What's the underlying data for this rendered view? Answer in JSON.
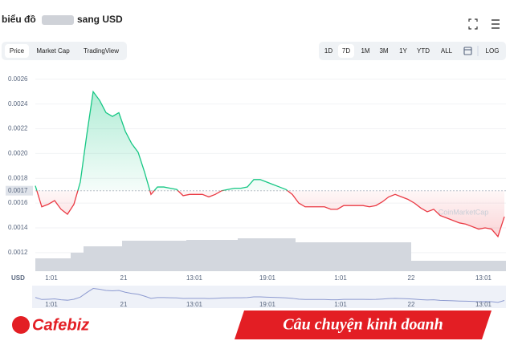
{
  "header": {
    "title_start": "biểu đồ",
    "title_end": "sang USD"
  },
  "tabs": [
    "Price",
    "Market Cap",
    "TradingView"
  ],
  "active_tab": "Price",
  "ranges": [
    "1D",
    "7D",
    "1M",
    "3M",
    "1Y",
    "YTD",
    "ALL"
  ],
  "active_range": "7D",
  "log_label": "LOG",
  "chart_data": {
    "type": "line",
    "ylim": [
      0.00105,
      0.00267
    ],
    "yticks": [
      0.0012,
      0.0014,
      0.0016,
      0.0018,
      {
        "value": 0.002,
        "label": "0.0020"
      },
      0.0022,
      0.0024,
      0.0026
    ],
    "baseline": 0.0017,
    "color_up": "#16c784",
    "color_down": "#ea3943",
    "values": [
      0.00174,
      0.00157,
      0.00159,
      0.00162,
      0.00155,
      0.00151,
      0.00159,
      0.00177,
      0.00215,
      0.0025,
      0.00243,
      0.00233,
      0.0023,
      0.00233,
      0.00218,
      0.00208,
      0.00201,
      0.00185,
      0.00167,
      0.00173,
      0.00173,
      0.00172,
      0.00171,
      0.00166,
      0.00167,
      0.00167,
      0.00167,
      0.00165,
      0.00167,
      0.0017,
      0.00171,
      0.00172,
      0.00172,
      0.00173,
      0.00179,
      0.00179,
      0.00177,
      0.00175,
      0.00173,
      0.00171,
      0.00167,
      0.0016,
      0.00157,
      0.00157,
      0.00157,
      0.00157,
      0.00155,
      0.00155,
      0.00158,
      0.00158,
      0.00158,
      0.00158,
      0.00157,
      0.00158,
      0.00161,
      0.00165,
      0.00167,
      0.00165,
      0.00163,
      0.0016,
      0.00156,
      0.00153,
      0.00155,
      0.0015,
      0.00148,
      0.00146,
      0.00144,
      0.00143,
      0.00141,
      0.00139,
      0.0014,
      0.00139,
      0.00133,
      0.00149
    ],
    "volume": {
      "color": "#d3d7de",
      "values": [
        16,
        16,
        16,
        16,
        16,
        16,
        23,
        23,
        31,
        31,
        31,
        31,
        31,
        31,
        38,
        38,
        38,
        38,
        38,
        38,
        38,
        38,
        38,
        38,
        39,
        39,
        39,
        39,
        39,
        39,
        39,
        39,
        41,
        41,
        41,
        41,
        41,
        41,
        41,
        41,
        41,
        36,
        36,
        36,
        36,
        36,
        36,
        36,
        36,
        36,
        36,
        36,
        36,
        36,
        36,
        36,
        36,
        36,
        36,
        13,
        13,
        13,
        13,
        13,
        13,
        13,
        13,
        13,
        13,
        13,
        13,
        13,
        13,
        13
      ]
    },
    "x_axis_label": "USD",
    "xtick_labels": [
      "1:01",
      "21",
      "13:01",
      "19:01",
      "1:01",
      "22",
      "13:01"
    ],
    "watermark": "CoinMarketCap"
  },
  "banner": {
    "logo": "Cafebiz",
    "slogan": "Câu chuyện kinh doanh"
  }
}
